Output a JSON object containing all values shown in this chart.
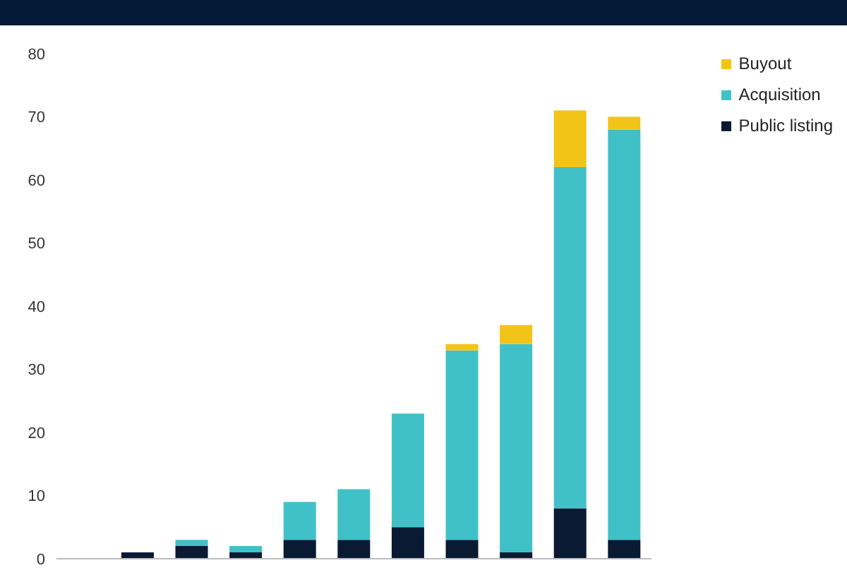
{
  "chart_data": {
    "type": "bar",
    "stacked": true,
    "categories": [
      null,
      null,
      null,
      null,
      null,
      null,
      null,
      null,
      null,
      null,
      null
    ],
    "series": [
      {
        "name": "Public listing",
        "color": "#0a1a33",
        "values": [
          0,
          1,
          2,
          1,
          3,
          3,
          5,
          3,
          1,
          8,
          3
        ]
      },
      {
        "name": "Acquisition",
        "color": "#40c1c7",
        "values": [
          0,
          0,
          1,
          1,
          6,
          8,
          18,
          30,
          33,
          54,
          65
        ]
      },
      {
        "name": "Buyout",
        "color": "#f2c418",
        "values": [
          0,
          0,
          0,
          0,
          0,
          0,
          0,
          1,
          3,
          9,
          2
        ]
      }
    ],
    "ylim": [
      0,
      80
    ],
    "yticks": [
      0,
      10,
      20,
      30,
      40,
      50,
      60,
      70,
      80
    ],
    "grid": false,
    "legend": "top right"
  }
}
